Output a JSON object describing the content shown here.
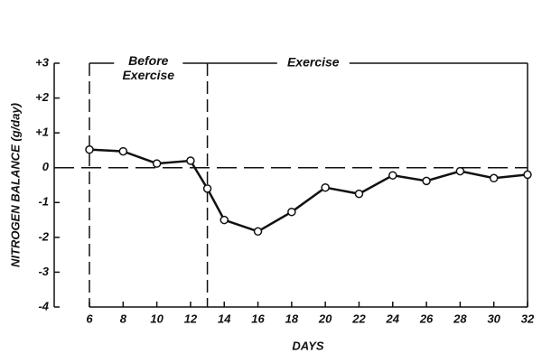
{
  "chart_data": {
    "type": "line",
    "y_label": "NITROGEN BALANCE (g/day)",
    "x_label": "DAYS",
    "annotations": [
      {
        "text": "Before Exercise",
        "x_from": 6,
        "x_to": 13
      },
      {
        "text": "Exercise",
        "x_from": 13,
        "x_to": 32
      }
    ],
    "x": [
      6,
      8,
      10,
      12,
      13,
      14,
      16,
      18,
      20,
      22,
      24,
      26,
      28,
      30,
      32
    ],
    "series": [
      {
        "color": "#111111",
        "values": [
          0.52,
          0.47,
          0.12,
          0.2,
          -0.6,
          -1.5,
          -1.83,
          -1.27,
          -0.57,
          -0.75,
          -0.22,
          -0.38,
          -0.1,
          -0.3,
          -0.2
        ]
      }
    ],
    "xlim": [
      6,
      32
    ],
    "xticks": [
      6,
      8,
      10,
      12,
      14,
      16,
      18,
      20,
      22,
      24,
      26,
      28,
      30,
      32
    ],
    "ylim": [
      -4,
      3
    ],
    "yticks": [
      -4,
      -3,
      -2,
      -1,
      0,
      {
        "value": 1,
        "label": "+1"
      },
      {
        "value": 2,
        "label": "+2"
      },
      {
        "value": 3,
        "label": "+3"
      }
    ],
    "reference_line_y": 0
  }
}
